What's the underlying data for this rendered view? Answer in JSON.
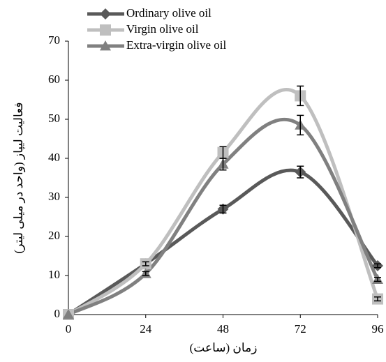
{
  "chart_data": {
    "type": "line",
    "smooth": true,
    "x_label": "زمان (ساعت)",
    "y_label": "فعالیت لیپاز (واحد در میلی لیتر)",
    "x": [
      0,
      24,
      48,
      72,
      96
    ],
    "xlim": [
      0,
      96
    ],
    "xticks": [
      0,
      24,
      48,
      72,
      96
    ],
    "ylim": [
      0,
      70
    ],
    "yticks": [
      0,
      10,
      20,
      30,
      40,
      50,
      60,
      70
    ],
    "grid": false,
    "legend": "top-left",
    "series": [
      {
        "name": "Ordinary olive oil",
        "color": "#595959",
        "marker": "diamond",
        "values": [
          0,
          13,
          27,
          36.5,
          12.5
        ],
        "errors": [
          0,
          0.5,
          1,
          1.5,
          0.5
        ]
      },
      {
        "name": "Virgin olive oil",
        "color": "#bfbfbf",
        "marker": "square",
        "values": [
          0,
          13,
          41.5,
          56,
          4
        ],
        "errors": [
          0,
          0.5,
          1.5,
          2.5,
          0.5
        ]
      },
      {
        "name": "Extra-virgin olive oil",
        "color": "#808080",
        "marker": "triangle",
        "values": [
          0,
          10.5,
          38.5,
          48.5,
          9
        ],
        "errors": [
          0,
          0.5,
          1.5,
          2.5,
          0.5
        ]
      }
    ]
  }
}
